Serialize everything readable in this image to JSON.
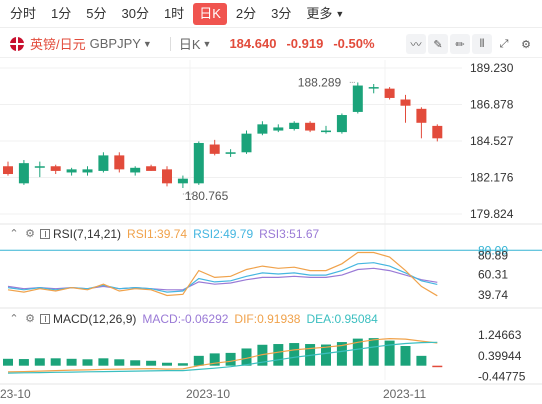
{
  "tabs": [
    {
      "label": "分时",
      "active": false
    },
    {
      "label": "1分",
      "active": false
    },
    {
      "label": "5分",
      "active": false
    },
    {
      "label": "30分",
      "active": false
    },
    {
      "label": "1时",
      "active": false
    },
    {
      "label": "日K",
      "active": true
    },
    {
      "label": "2分",
      "active": false
    },
    {
      "label": "3分",
      "active": false
    },
    {
      "label": "更多",
      "active": false
    }
  ],
  "symbol": {
    "name": "英镑/日元",
    "code": "GBPJPY",
    "period": "日K",
    "price": "184.640",
    "change": "-0.919",
    "change_pct": "-0.50%"
  },
  "colors": {
    "up": "#1ba37a",
    "down": "#e24b3b",
    "rsi1": "#f0a24b",
    "rsi2": "#45b6e0",
    "rsi3": "#9a7ad6",
    "dif": "#f0a24b",
    "dea": "#3bbfc0"
  },
  "chart_data": {
    "type": "candlestick",
    "price_axis_ticks": [
      "189.230",
      "186.878",
      "184.527",
      "182.176",
      "179.824"
    ],
    "price_range": [
      179.824,
      189.23
    ],
    "max_label": "188.289",
    "min_label": "180.765",
    "x_labels": [
      "23-10",
      "2023-10",
      "2023-11"
    ],
    "candles": [
      {
        "o": 182.9,
        "h": 183.2,
        "l": 182.3,
        "c": 182.4
      },
      {
        "o": 181.8,
        "h": 183.3,
        "l": 181.7,
        "c": 183.1
      },
      {
        "o": 182.9,
        "h": 183.2,
        "l": 182.2,
        "c": 182.9
      },
      {
        "o": 182.9,
        "h": 183.0,
        "l": 182.4,
        "c": 182.6
      },
      {
        "o": 182.5,
        "h": 182.8,
        "l": 182.3,
        "c": 182.7
      },
      {
        "o": 182.5,
        "h": 182.9,
        "l": 182.3,
        "c": 182.7
      },
      {
        "o": 182.6,
        "h": 183.8,
        "l": 182.5,
        "c": 183.6
      },
      {
        "o": 183.6,
        "h": 183.8,
        "l": 182.5,
        "c": 182.7
      },
      {
        "o": 182.5,
        "h": 182.9,
        "l": 182.3,
        "c": 182.8
      },
      {
        "o": 182.9,
        "h": 183.0,
        "l": 182.6,
        "c": 182.6
      },
      {
        "o": 182.7,
        "h": 182.9,
        "l": 181.6,
        "c": 181.8
      },
      {
        "o": 181.8,
        "h": 182.3,
        "l": 181.5,
        "c": 182.1
      },
      {
        "o": 181.8,
        "h": 184.5,
        "l": 181.7,
        "c": 184.4
      },
      {
        "o": 184.3,
        "h": 184.6,
        "l": 183.6,
        "c": 183.7
      },
      {
        "o": 183.7,
        "h": 184.0,
        "l": 183.5,
        "c": 183.8
      },
      {
        "o": 183.8,
        "h": 185.2,
        "l": 183.7,
        "c": 185.0
      },
      {
        "o": 185.0,
        "h": 185.8,
        "l": 184.9,
        "c": 185.6
      },
      {
        "o": 185.2,
        "h": 185.6,
        "l": 185.1,
        "c": 185.4
      },
      {
        "o": 185.3,
        "h": 185.8,
        "l": 185.2,
        "c": 185.7
      },
      {
        "o": 185.7,
        "h": 185.8,
        "l": 185.1,
        "c": 185.2
      },
      {
        "o": 185.1,
        "h": 185.5,
        "l": 185.0,
        "c": 185.2
      },
      {
        "o": 185.1,
        "h": 186.3,
        "l": 185.0,
        "c": 186.2
      },
      {
        "o": 186.4,
        "h": 188.3,
        "l": 186.3,
        "c": 188.1
      },
      {
        "o": 188.0,
        "h": 188.2,
        "l": 187.6,
        "c": 188.0
      },
      {
        "o": 187.9,
        "h": 188.0,
        "l": 187.2,
        "c": 187.3
      },
      {
        "o": 187.2,
        "h": 187.5,
        "l": 185.7,
        "c": 186.8
      },
      {
        "o": 186.6,
        "h": 186.7,
        "l": 184.7,
        "c": 185.7
      },
      {
        "o": 185.5,
        "h": 185.6,
        "l": 184.5,
        "c": 184.7
      }
    ],
    "rsi": {
      "label": "RSI(7,14,21)",
      "rsi1_label": "RSI1:39.74",
      "rsi2_label": "RSI2:49.79",
      "rsi3_label": "RSI3:51.67",
      "ticks": [
        "80.00",
        "80.89",
        "60.31",
        "39.74"
      ],
      "range": [
        36,
        82
      ],
      "rsi1": [
        45,
        43,
        46,
        44,
        47,
        45,
        50,
        44,
        46,
        45,
        40,
        41,
        62,
        56,
        57,
        63,
        66,
        64,
        65,
        62,
        62,
        68,
        78,
        78,
        74,
        62,
        48,
        39.7
      ],
      "rsi2": [
        47,
        45,
        47,
        45,
        47,
        46,
        49,
        46,
        47,
        46,
        43,
        44,
        55,
        52,
        53,
        57,
        60,
        59,
        60,
        58,
        58,
        62,
        68,
        69,
        66,
        60,
        53,
        49.8
      ],
      "rsi3": [
        48,
        46,
        47,
        46,
        47,
        46,
        48,
        46,
        47,
        46,
        45,
        45,
        52,
        50,
        51,
        54,
        56,
        56,
        57,
        56,
        56,
        58,
        63,
        64,
        62,
        58,
        54,
        51.7
      ]
    },
    "macd": {
      "label": "MACD(12,26,9)",
      "macd_label": "MACD:-0.06292",
      "dif_label": "DIF:0.91938",
      "dea_label": "DEA:0.95084",
      "ticks": [
        "1.24663",
        "0.39944",
        "-0.44775"
      ],
      "range": [
        -0.5,
        1.45
      ],
      "hist": [
        0.28,
        0.27,
        0.3,
        0.3,
        0.28,
        0.26,
        0.3,
        0.26,
        0.22,
        0.2,
        0.12,
        0.1,
        0.4,
        0.5,
        0.52,
        0.7,
        0.85,
        0.88,
        0.92,
        0.88,
        0.86,
        0.96,
        1.1,
        1.12,
        1.02,
        0.8,
        0.4,
        -0.06
      ],
      "dif": [
        -0.25,
        -0.24,
        -0.22,
        -0.2,
        -0.18,
        -0.17,
        -0.15,
        -0.14,
        -0.13,
        -0.12,
        -0.14,
        -0.13,
        0.0,
        0.1,
        0.18,
        0.3,
        0.45,
        0.55,
        0.64,
        0.7,
        0.75,
        0.82,
        0.95,
        1.05,
        1.1,
        1.08,
        1.0,
        0.92
      ],
      "dea": [
        -0.3,
        -0.29,
        -0.28,
        -0.27,
        -0.26,
        -0.25,
        -0.24,
        -0.23,
        -0.22,
        -0.21,
        -0.2,
        -0.2,
        -0.15,
        -0.1,
        -0.04,
        0.04,
        0.14,
        0.24,
        0.34,
        0.42,
        0.5,
        0.58,
        0.67,
        0.76,
        0.84,
        0.9,
        0.94,
        0.95
      ]
    }
  }
}
